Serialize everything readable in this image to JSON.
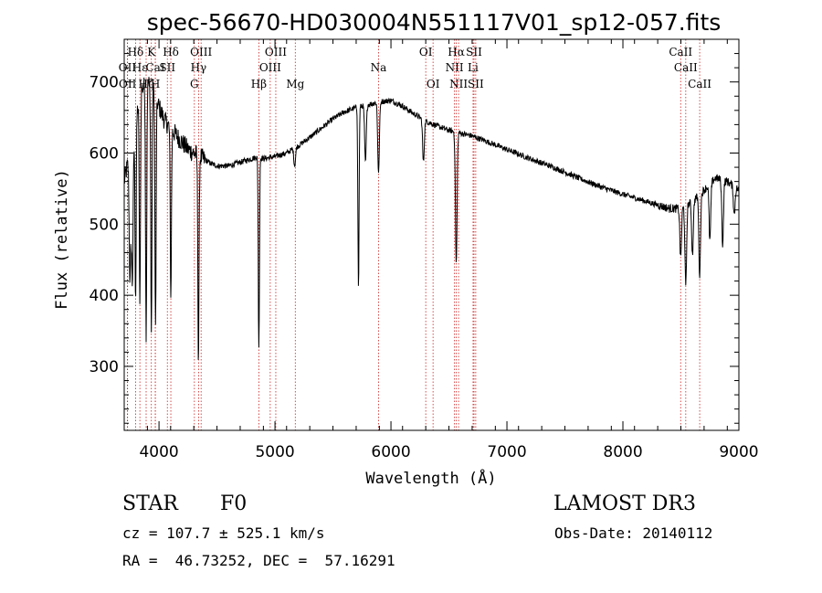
{
  "title": "spec-56670-HD030004N551117V01_sp12-057.fits",
  "info": {
    "object_type": "STAR",
    "subclass": "F0",
    "survey": "LAMOST DR3",
    "cz": "cz = 107.7 ± 525.1 km/s",
    "obs_date": "Obs-Date: 20140112",
    "coords": "RA =  46.73252, DEC =  57.16291"
  },
  "chart_data": {
    "type": "line",
    "title": "spec-56670-HD030004N551117V01_sp12-057.fits",
    "xlabel": "Wavelength (Å)",
    "ylabel": "Flux (relative)",
    "xlim": [
      3700,
      9000
    ],
    "ylim": [
      210,
      760
    ],
    "x_ticks": [
      4000,
      5000,
      6000,
      7000,
      8000,
      9000
    ],
    "y_ticks": [
      300,
      400,
      500,
      600,
      700
    ],
    "grid": false,
    "line_color": "#000000",
    "marker_color": "#cc2222",
    "continuum": [
      [
        3700,
        560
      ],
      [
        3760,
        610
      ],
      [
        3800,
        650
      ],
      [
        3850,
        690
      ],
      [
        3900,
        700
      ],
      [
        3950,
        690
      ],
      [
        4000,
        665
      ],
      [
        4050,
        645
      ],
      [
        4100,
        635
      ],
      [
        4150,
        625
      ],
      [
        4200,
        615
      ],
      [
        4250,
        605
      ],
      [
        4300,
        600
      ],
      [
        4350,
        595
      ],
      [
        4400,
        590
      ],
      [
        4450,
        585
      ],
      [
        4500,
        582
      ],
      [
        4600,
        582
      ],
      [
        4700,
        587
      ],
      [
        4800,
        592
      ],
      [
        4850,
        595
      ],
      [
        4900,
        592
      ],
      [
        5000,
        595
      ],
      [
        5100,
        600
      ],
      [
        5200,
        610
      ],
      [
        5300,
        622
      ],
      [
        5400,
        635
      ],
      [
        5500,
        648
      ],
      [
        5600,
        658
      ],
      [
        5700,
        664
      ],
      [
        5800,
        668
      ],
      [
        5900,
        672
      ],
      [
        6000,
        674
      ],
      [
        6100,
        666
      ],
      [
        6200,
        655
      ],
      [
        6300,
        645
      ],
      [
        6400,
        638
      ],
      [
        6500,
        632
      ],
      [
        6600,
        628
      ],
      [
        6700,
        624
      ],
      [
        6800,
        618
      ],
      [
        7000,
        605
      ],
      [
        7200,
        592
      ],
      [
        7400,
        580
      ],
      [
        7600,
        566
      ],
      [
        7800,
        553
      ],
      [
        8000,
        542
      ],
      [
        8200,
        532
      ],
      [
        8400,
        522
      ],
      [
        8500,
        522
      ],
      [
        8600,
        532
      ],
      [
        8700,
        548
      ],
      [
        8800,
        565
      ],
      [
        8900,
        560
      ],
      [
        9000,
        548
      ]
    ],
    "absorption_lines": [
      {
        "wavelength": 3750,
        "depth": 180
      },
      {
        "wavelength": 3770,
        "depth": 200
      },
      {
        "wavelength": 3798,
        "depth": 250
      },
      {
        "wavelength": 3835,
        "depth": 300
      },
      {
        "wavelength": 3889,
        "depth": 350
      },
      {
        "wavelength": 3934,
        "depth": 350
      },
      {
        "wavelength": 3970,
        "depth": 330
      },
      {
        "wavelength": 4102,
        "depth": 240
      },
      {
        "wavelength": 4340,
        "depth": 290
      },
      {
        "wavelength": 4861,
        "depth": 270
      },
      {
        "wavelength": 5170,
        "depth": 25
      },
      {
        "wavelength": 5720,
        "depth": 255
      },
      {
        "wavelength": 5780,
        "depth": 80
      },
      {
        "wavelength": 5893,
        "depth": 100
      },
      {
        "wavelength": 6280,
        "depth": 60
      },
      {
        "wavelength": 6563,
        "depth": 185
      },
      {
        "wavelength": 8498,
        "depth": 70
      },
      {
        "wavelength": 8542,
        "depth": 115
      },
      {
        "wavelength": 8600,
        "depth": 75
      },
      {
        "wavelength": 8662,
        "depth": 115
      },
      {
        "wavelength": 8750,
        "depth": 80
      },
      {
        "wavelength": 8860,
        "depth": 90
      },
      {
        "wavelength": 8960,
        "depth": 40
      }
    ],
    "line_markers": [
      {
        "label": "Hδ",
        "wavelength": 3798,
        "row": 0
      },
      {
        "label": "OII",
        "wavelength": 3727,
        "row": 1
      },
      {
        "label": "OII",
        "wavelength": 3729,
        "row": 2
      },
      {
        "label": "Hε",
        "wavelength": 3835,
        "row": 1
      },
      {
        "label": "Hζ",
        "wavelength": 3889,
        "row": 2
      },
      {
        "label": "K",
        "wavelength": 3934,
        "row": 0
      },
      {
        "label": "CaI",
        "wavelength": 3968,
        "row": 1
      },
      {
        "label": "H",
        "wavelength": 3969,
        "row": 2
      },
      {
        "label": "Hδ",
        "wavelength": 4102,
        "row": 0
      },
      {
        "label": "SII",
        "wavelength": 4072,
        "row": 1
      },
      {
        "label": "OIII",
        "wavelength": 4363,
        "row": 0
      },
      {
        "label": "Hγ",
        "wavelength": 4341,
        "row": 1
      },
      {
        "label": "G",
        "wavelength": 4305,
        "row": 2
      },
      {
        "label": "Hβ",
        "wavelength": 4861,
        "row": 2
      },
      {
        "label": "OIII",
        "wavelength": 5007,
        "row": 0
      },
      {
        "label": "OIII",
        "wavelength": 4959,
        "row": 1
      },
      {
        "label": "Mg",
        "wavelength": 5175,
        "row": 2
      },
      {
        "label": "Na",
        "wavelength": 5893,
        "row": 1
      },
      {
        "label": "OI",
        "wavelength": 6300,
        "row": 0
      },
      {
        "label": "OI",
        "wavelength": 6363,
        "row": 2
      },
      {
        "label": "Hα",
        "wavelength": 6563,
        "row": 0
      },
      {
        "label": "NII",
        "wavelength": 6548,
        "row": 1
      },
      {
        "label": "NII",
        "wavelength": 6583,
        "row": 2
      },
      {
        "label": "SII",
        "wavelength": 6716,
        "row": 0
      },
      {
        "label": "Li",
        "wavelength": 6708,
        "row": 1
      },
      {
        "label": "SII",
        "wavelength": 6731,
        "row": 2
      },
      {
        "label": "CaII",
        "wavelength": 8498,
        "row": 0
      },
      {
        "label": "CaII",
        "wavelength": 8542,
        "row": 1
      },
      {
        "label": "CaII",
        "wavelength": 8662,
        "row": 2
      }
    ]
  }
}
